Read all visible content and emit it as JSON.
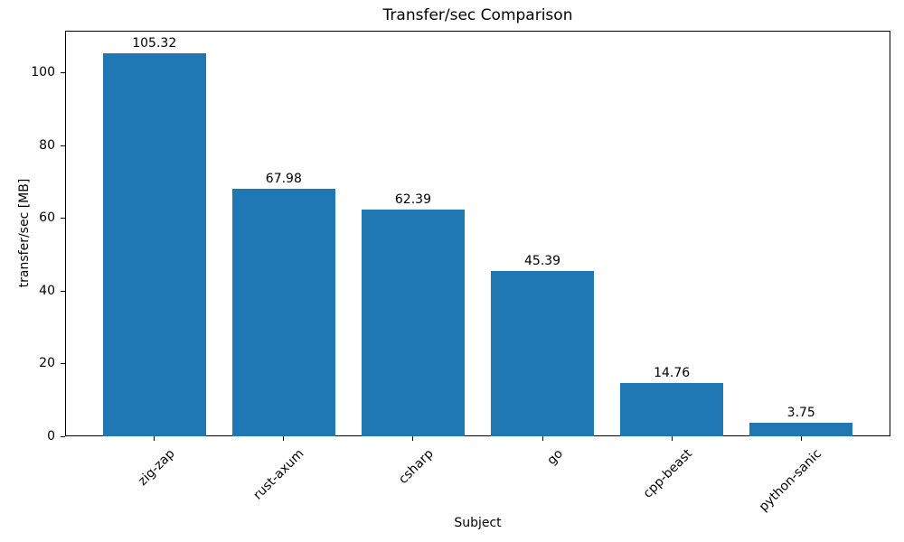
{
  "chart_data": {
    "type": "bar",
    "title": "Transfer/sec Comparison",
    "xlabel": "Subject",
    "ylabel": "transfer/sec [MB]",
    "categories": [
      "zig-zap",
      "rust-axum",
      "csharp",
      "go",
      "cpp-beast",
      "python-sanic"
    ],
    "values": [
      105.32,
      67.98,
      62.39,
      45.39,
      14.76,
      3.75
    ],
    "bar_value_labels": [
      "105.32",
      "67.98",
      "62.39",
      "45.39",
      "14.76",
      "3.75"
    ],
    "yticks": [
      0,
      20,
      40,
      60,
      80,
      100
    ],
    "ylim": [
      0,
      111.6
    ],
    "bar_color": "#1f77b4",
    "axis_color": "#000000",
    "text_color": "#000000",
    "grid": false,
    "legend": null
  }
}
